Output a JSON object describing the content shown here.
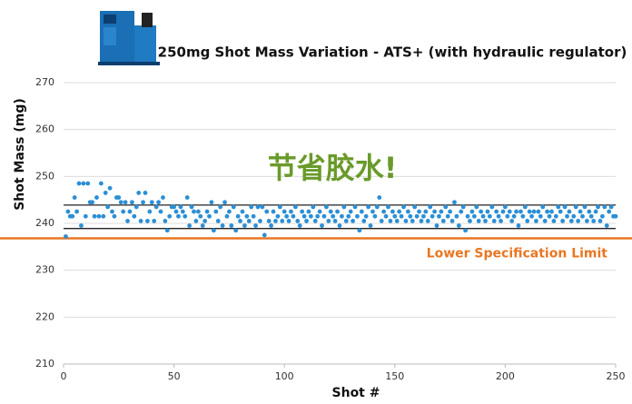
{
  "chart_data": {
    "type": "scatter",
    "title": "250mg Shot Mass Variation - ATS+ (with hydraulic regulator)",
    "x_label": "Shot #",
    "y_label": "Shot Mass (mg)",
    "annotation": {
      "text": "节省胶水!",
      "color": "#6a9a2a"
    },
    "xlim": [
      0,
      250
    ],
    "xticks": [
      0,
      50,
      100,
      150,
      200,
      250
    ],
    "ylim": [
      210,
      270
    ],
    "yticks": [
      210,
      220,
      230,
      240,
      250,
      260,
      270
    ],
    "grid": true,
    "reference_lines": [
      {
        "value": 243.9,
        "color": "#222222"
      },
      {
        "value": 238.9,
        "color": "#222222"
      },
      {
        "value": 236.8,
        "color": "#e87722",
        "label": "Lower Specification Limit"
      }
    ],
    "series": [
      {
        "color": "#2b8fd6",
        "x": [
          1,
          2,
          3,
          4,
          5,
          6,
          7,
          8,
          9,
          10,
          11,
          12,
          13,
          14,
          15,
          16,
          17,
          18,
          19,
          20,
          21,
          22,
          23,
          24,
          25,
          26,
          27,
          28,
          29,
          30,
          31,
          32,
          33,
          34,
          35,
          36,
          37,
          38,
          39,
          40,
          41,
          42,
          43,
          44,
          45,
          46,
          47,
          48,
          49,
          50,
          51,
          52,
          53,
          54,
          55,
          56,
          57,
          58,
          59,
          60,
          61,
          62,
          63,
          64,
          65,
          66,
          67,
          68,
          69,
          70,
          71,
          72,
          73,
          74,
          75,
          76,
          77,
          78,
          79,
          80,
          81,
          82,
          83,
          84,
          85,
          86,
          87,
          88,
          89,
          90,
          91,
          92,
          93,
          94,
          95,
          96,
          97,
          98,
          99,
          100,
          101,
          102,
          103,
          104,
          105,
          106,
          107,
          108,
          109,
          110,
          111,
          112,
          113,
          114,
          115,
          116,
          117,
          118,
          119,
          120,
          121,
          122,
          123,
          124,
          125,
          126,
          127,
          128,
          129,
          130,
          131,
          132,
          133,
          134,
          135,
          136,
          137,
          138,
          139,
          140,
          141,
          142,
          143,
          144,
          145,
          146,
          147,
          148,
          149,
          150,
          151,
          152,
          153,
          154,
          155,
          156,
          157,
          158,
          159,
          160,
          161,
          162,
          163,
          164,
          165,
          166,
          167,
          168,
          169,
          170,
          171,
          172,
          173,
          174,
          175,
          176,
          177,
          178,
          179,
          180,
          181,
          182,
          183,
          184,
          185,
          186,
          187,
          188,
          189,
          190,
          191,
          192,
          193,
          194,
          195,
          196,
          197,
          198,
          199,
          200,
          201,
          202,
          203,
          204,
          205,
          206,
          207,
          208,
          209,
          210,
          211,
          212,
          213,
          214,
          215,
          216,
          217,
          218,
          219,
          220,
          221,
          222,
          223,
          224,
          225,
          226,
          227,
          228,
          229,
          230,
          231,
          232,
          233,
          234,
          235,
          236,
          237,
          238,
          239,
          240,
          241,
          242,
          243,
          244,
          245,
          246,
          247,
          248,
          249,
          250
        ],
        "values": [
          237.2,
          242.5,
          241.5,
          241.5,
          245.5,
          242.5,
          248.5,
          239.5,
          248.5,
          241.5,
          248.5,
          244.5,
          244.5,
          241.5,
          245.5,
          241.5,
          248.5,
          241.5,
          246.5,
          243.5,
          247.5,
          242.5,
          241.5,
          245.5,
          245.5,
          244.5,
          242.5,
          244.5,
          240.5,
          242.5,
          244.5,
          241.5,
          243.5,
          246.5,
          240.5,
          244.5,
          246.5,
          240.5,
          242.5,
          244.5,
          240.5,
          243.5,
          244.5,
          242.5,
          245.5,
          240.5,
          238.5,
          241.5,
          243.5,
          243.5,
          242.5,
          241.5,
          243.5,
          242.5,
          241.5,
          245.5,
          239.5,
          243.5,
          242.5,
          240.5,
          242.5,
          241.5,
          239.5,
          240.5,
          242.5,
          241.5,
          244.5,
          238.5,
          242.5,
          240.5,
          243.5,
          239.5,
          244.5,
          241.5,
          242.5,
          239.5,
          243.5,
          238.5,
          241.5,
          240.5,
          242.5,
          239.5,
          241.5,
          240.5,
          243.5,
          241.5,
          239.5,
          243.5,
          240.5,
          243.5,
          237.5,
          242.5,
          240.5,
          239.5,
          242.5,
          240.5,
          241.5,
          243.5,
          240.5,
          242.5,
          241.5,
          240.5,
          242.5,
          241.5,
          243.5,
          240.5,
          239.5,
          242.5,
          241.5,
          240.5,
          242.5,
          241.5,
          243.5,
          240.5,
          241.5,
          242.5,
          239.5,
          241.5,
          243.5,
          240.5,
          242.5,
          241.5,
          240.5,
          242.5,
          239.5,
          241.5,
          243.5,
          240.5,
          241.5,
          242.5,
          240.5,
          243.5,
          241.5,
          238.5,
          242.5,
          240.5,
          241.5,
          243.5,
          239.5,
          242.5,
          241.5,
          243.5,
          245.5,
          240.5,
          242.5,
          241.5,
          243.5,
          240.5,
          242.5,
          241.5,
          240.5,
          242.5,
          241.5,
          243.5,
          240.5,
          242.5,
          241.5,
          240.5,
          243.5,
          241.5,
          242.5,
          240.5,
          241.5,
          242.5,
          240.5,
          243.5,
          241.5,
          242.5,
          239.5,
          241.5,
          242.5,
          240.5,
          243.5,
          241.5,
          242.5,
          240.5,
          244.5,
          241.5,
          239.5,
          242.5,
          243.5,
          238.5,
          241.5,
          240.5,
          242.5,
          241.5,
          243.5,
          240.5,
          242.5,
          241.5,
          240.5,
          242.5,
          241.5,
          243.5,
          240.5,
          242.5,
          241.5,
          240.5,
          242.5,
          243.5,
          241.5,
          242.5,
          240.5,
          241.5,
          242.5,
          239.5,
          242.5,
          241.5,
          243.5,
          240.5,
          242.5,
          241.5,
          242.5,
          240.5,
          242.5,
          241.5,
          243.5,
          240.5,
          242.5,
          241.5,
          242.5,
          240.5,
          241.5,
          243.5,
          242.5,
          240.5,
          243.5,
          241.5,
          242.5,
          240.5,
          241.5,
          243.5,
          240.5,
          242.5,
          241.5,
          243.5,
          240.5,
          242.5,
          241.5,
          240.5,
          242.5,
          243.5,
          240.5,
          241.5,
          243.5,
          239.5,
          242.5,
          243.5,
          241.5,
          241.5
        ]
      }
    ]
  }
}
